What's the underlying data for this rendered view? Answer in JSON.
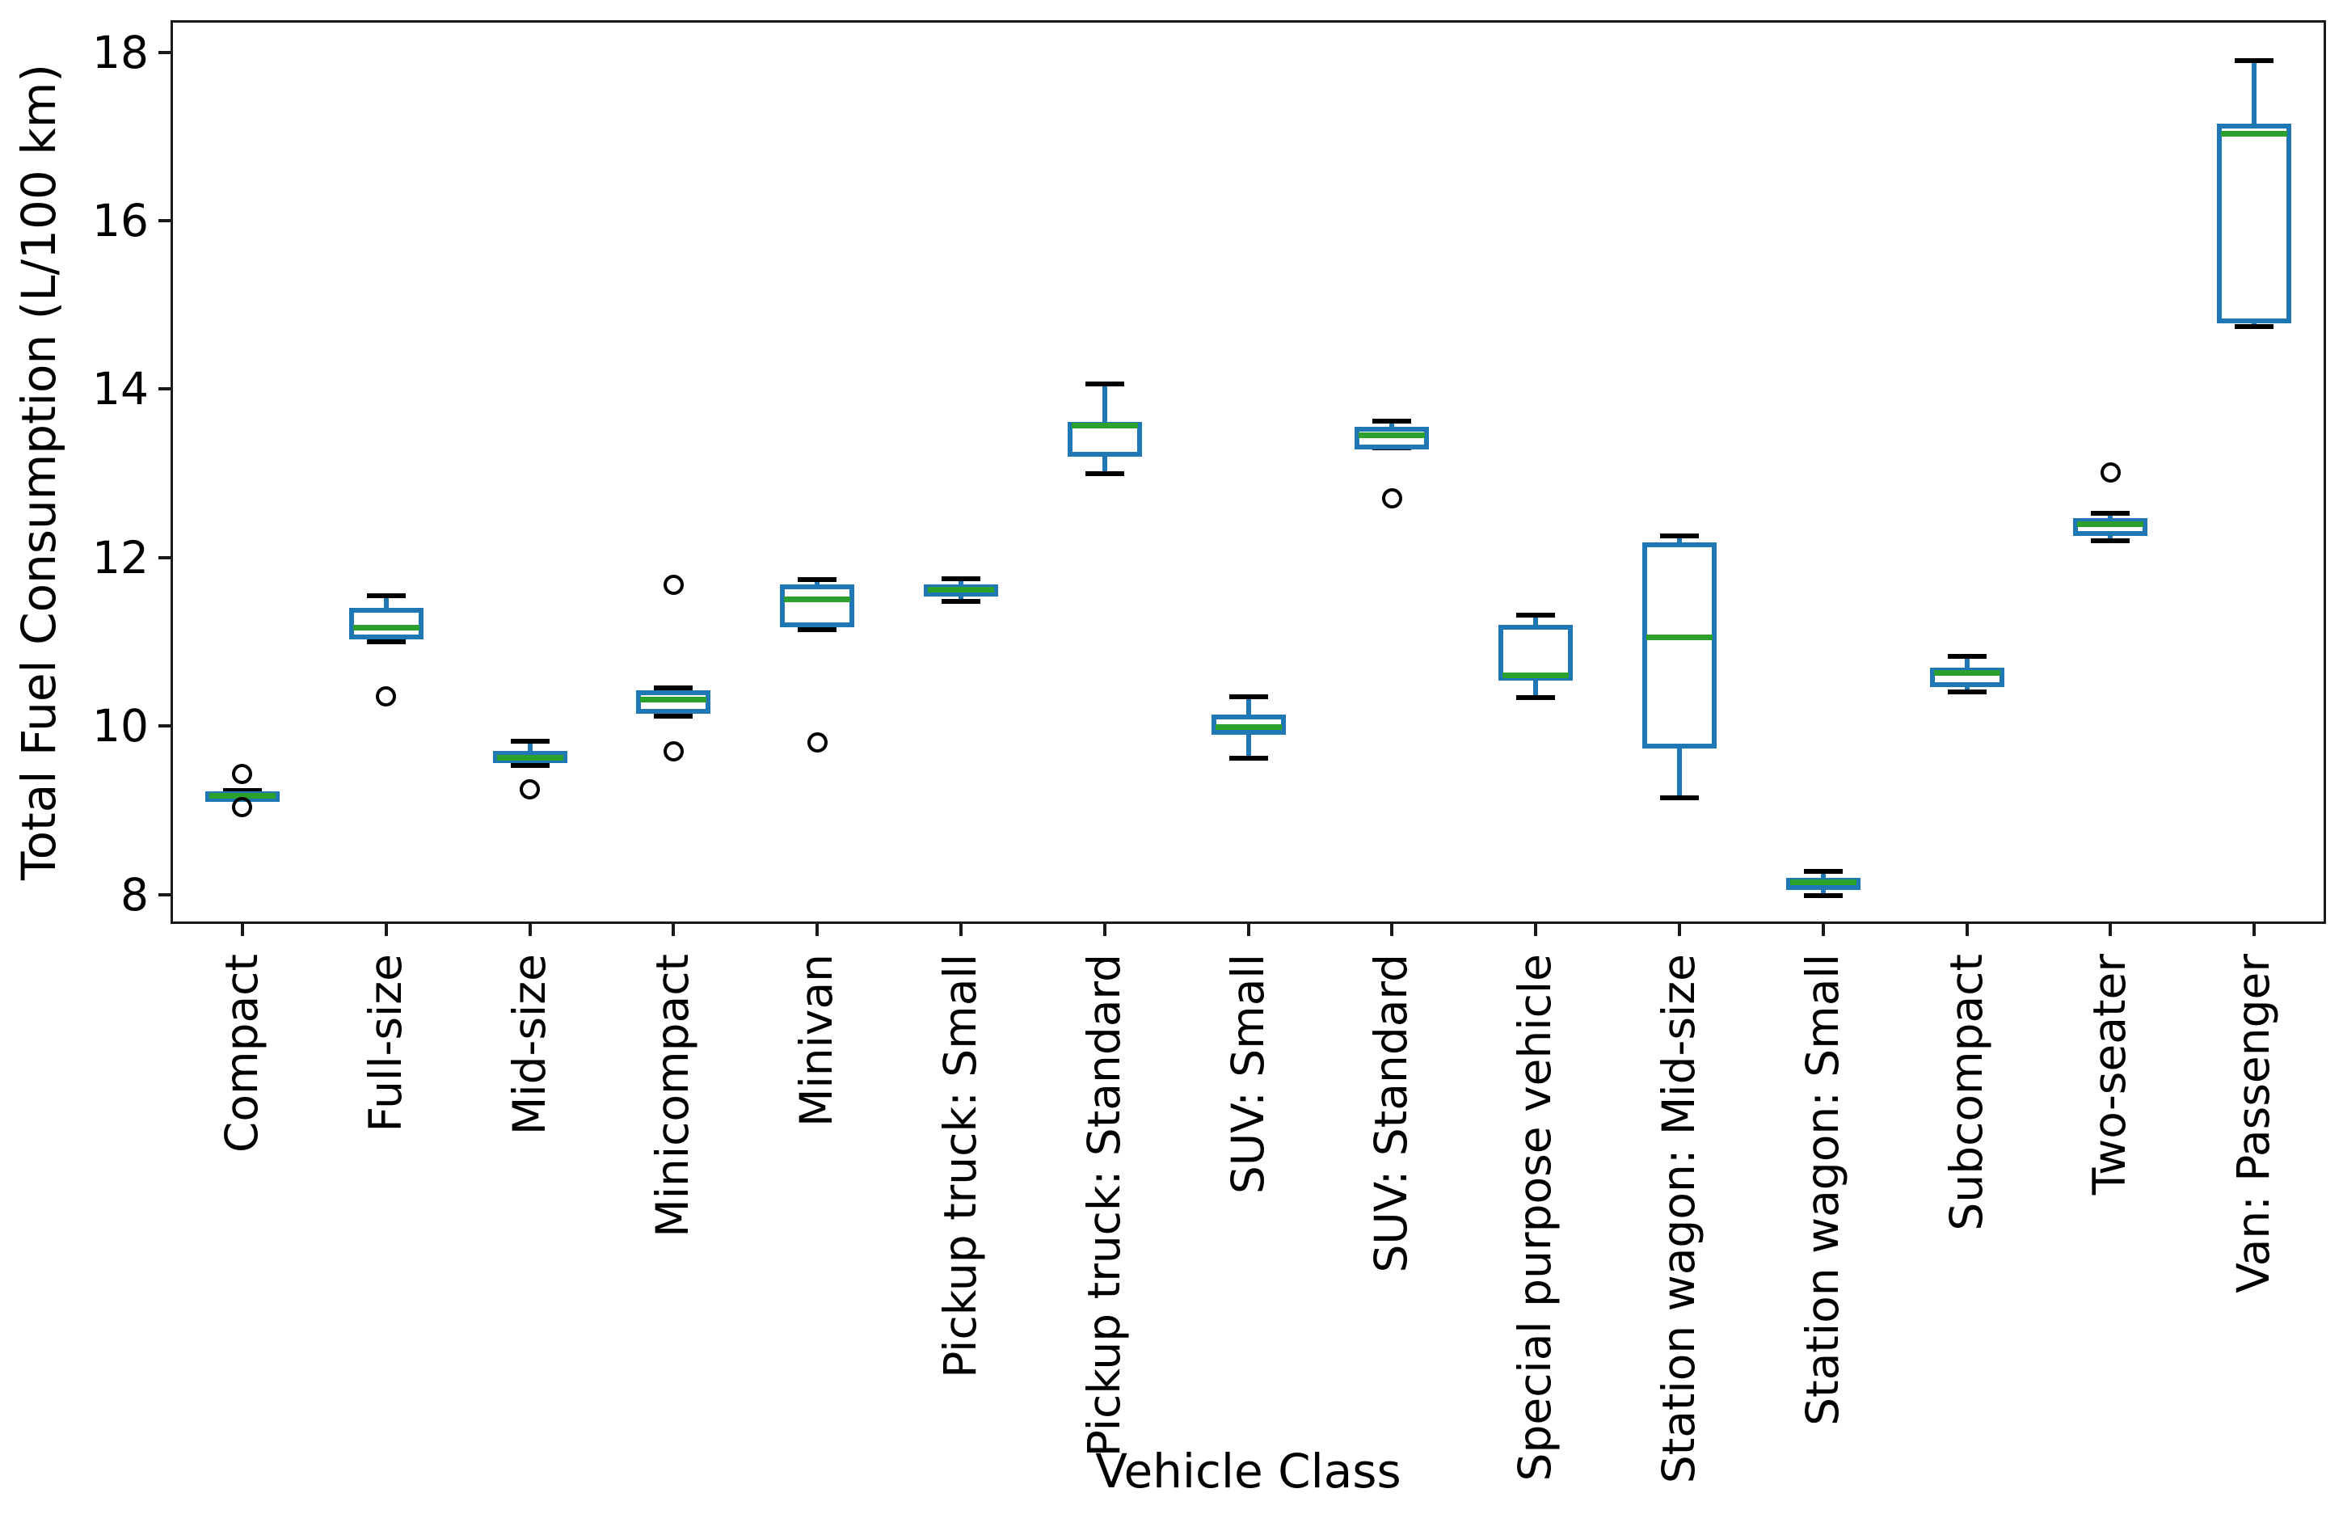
{
  "figure": {
    "background": "#ffffff"
  },
  "chart_data": {
    "type": "box",
    "title": "",
    "xlabel": "Vehicle Class",
    "ylabel": "Total Fuel Consumption (L/100 km)",
    "ylim": [
      7.65,
      18.38
    ],
    "yticks": [
      8,
      10,
      12,
      14,
      16,
      18
    ],
    "grid": false,
    "legend_position": "none",
    "orientation": "vertical",
    "colors": {
      "box": "#1f77b4",
      "whisker": "#1f77b4",
      "cap": "#000000",
      "median": "#2ca02c",
      "flier": "#000000",
      "spine": "#1a1a1a",
      "text": "#000000",
      "background": "#ffffff"
    },
    "categories": [
      "Compact",
      "Full-size",
      "Mid-size",
      "Minicompact",
      "Minivan",
      "Pickup truck: Small",
      "Pickup truck: Standard",
      "SUV: Small",
      "SUV: Standard",
      "Special purpose vehicle",
      "Station wagon: Mid-size",
      "Station wagon: Small",
      "Subcompact",
      "Two-seater",
      "Van: Passenger"
    ],
    "boxes": [
      {
        "label": "Compact",
        "whislo": 9.13,
        "q1": 9.1,
        "med": 9.17,
        "q3": 9.22,
        "whishi": 9.23,
        "fliers": [
          9.43,
          9.04
        ]
      },
      {
        "label": "Full-size",
        "whislo": 11.0,
        "q1": 11.03,
        "med": 11.17,
        "q3": 11.4,
        "whishi": 11.55,
        "fliers": [
          10.35
        ]
      },
      {
        "label": "Mid-size",
        "whislo": 9.53,
        "q1": 9.56,
        "med": 9.62,
        "q3": 9.7,
        "whishi": 9.82,
        "fliers": [
          9.25
        ]
      },
      {
        "label": "Minicompact",
        "whislo": 10.12,
        "q1": 10.15,
        "med": 10.31,
        "q3": 10.42,
        "whishi": 10.45,
        "fliers": [
          11.68,
          9.7
        ]
      },
      {
        "label": "Minivan",
        "whislo": 11.14,
        "q1": 11.17,
        "med": 11.5,
        "q3": 11.68,
        "whishi": 11.74,
        "fliers": [
          9.8
        ]
      },
      {
        "label": "Pickup truck: Small",
        "whislo": 11.48,
        "q1": 11.54,
        "med": 11.62,
        "q3": 11.68,
        "whishi": 11.75,
        "fliers": []
      },
      {
        "label": "Pickup truck: Standard",
        "whislo": 13.0,
        "q1": 13.2,
        "med": 13.57,
        "q3": 13.61,
        "whishi": 14.06,
        "fliers": []
      },
      {
        "label": "SUV: Small",
        "whislo": 9.62,
        "q1": 9.9,
        "med": 9.99,
        "q3": 10.14,
        "whishi": 10.35,
        "fliers": []
      },
      {
        "label": "SUV: Standard",
        "whislo": 13.3,
        "q1": 13.28,
        "med": 13.45,
        "q3": 13.55,
        "whishi": 13.62,
        "fliers": [
          12.7
        ]
      },
      {
        "label": "Special purpose vehicle",
        "whislo": 10.34,
        "q1": 10.54,
        "med": 10.6,
        "q3": 11.2,
        "whishi": 11.32,
        "fliers": []
      },
      {
        "label": "Station wagon: Mid-size",
        "whislo": 9.15,
        "q1": 9.73,
        "med": 11.05,
        "q3": 12.18,
        "whishi": 12.26,
        "fliers": []
      },
      {
        "label": "Station wagon: Small",
        "whislo": 7.99,
        "q1": 8.05,
        "med": 8.14,
        "q3": 8.2,
        "whishi": 8.27,
        "fliers": []
      },
      {
        "label": "Subcompact",
        "whislo": 10.4,
        "q1": 10.46,
        "med": 10.63,
        "q3": 10.69,
        "whishi": 10.83,
        "fliers": []
      },
      {
        "label": "Two-seater",
        "whislo": 12.2,
        "q1": 12.26,
        "med": 12.4,
        "q3": 12.47,
        "whishi": 12.53,
        "fliers": [
          13.01
        ]
      },
      {
        "label": "Van: Passenger",
        "whislo": 14.74,
        "q1": 14.78,
        "med": 17.03,
        "q3": 17.15,
        "whishi": 17.9,
        "fliers": []
      }
    ]
  }
}
